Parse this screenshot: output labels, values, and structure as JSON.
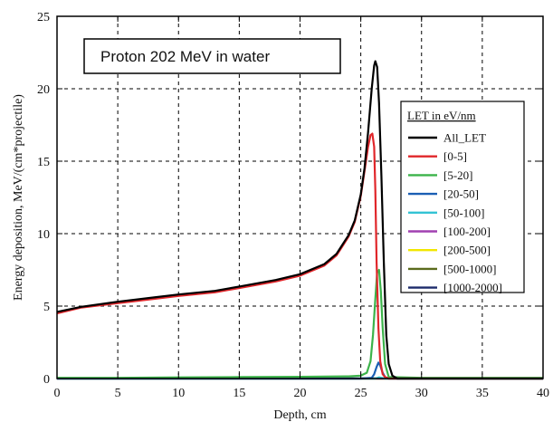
{
  "chart_data": {
    "type": "line",
    "annotation": "Proton 202 MeV in water",
    "xlabel": "Depth, cm",
    "ylabel": "Energy deposition, MeV/(cm*projectile)",
    "xlim": [
      0,
      40
    ],
    "ylim": [
      0,
      25
    ],
    "xticks": [
      0,
      5,
      10,
      15,
      20,
      25,
      30,
      35,
      40
    ],
    "yticks": [
      0,
      5,
      10,
      15,
      20,
      25
    ],
    "grid": true,
    "legend": {
      "title": "LET in eV/nm",
      "placement": "right",
      "entries": [
        "All_LET",
        "[0-5]",
        "[5-20]",
        "[20-50]",
        "[50-100]",
        "[100-200]",
        "[200-500]",
        "[500-1000]",
        "[1000-2000]"
      ]
    },
    "series": [
      {
        "name": "All_LET",
        "color": "#000000",
        "x": [
          0,
          2,
          5,
          8,
          10,
          13,
          15,
          18,
          20,
          22,
          23,
          24,
          24.5,
          25,
          25.3,
          25.6,
          25.9,
          26.1,
          26.2,
          26.35,
          26.5,
          26.7,
          26.9,
          27.1,
          27.3,
          27.6,
          28,
          30,
          35,
          40
        ],
        "y": [
          4.6,
          4.95,
          5.3,
          5.6,
          5.8,
          6.05,
          6.35,
          6.8,
          7.2,
          7.9,
          8.6,
          9.9,
          10.9,
          12.7,
          14.5,
          17.0,
          20.0,
          21.6,
          21.9,
          21.5,
          19.0,
          14.0,
          8.0,
          3.0,
          1.0,
          0.2,
          0,
          0,
          0,
          0
        ]
      },
      {
        "name": "[0-5]",
        "color": "#e0262a",
        "x": [
          0,
          2,
          5,
          8,
          10,
          13,
          15,
          18,
          20,
          22,
          23,
          24,
          24.5,
          25,
          25.3,
          25.6,
          25.8,
          25.95,
          26.1,
          26.2,
          26.3,
          26.45,
          26.6,
          26.8,
          27.0,
          27.3,
          30,
          35,
          40
        ],
        "y": [
          4.5,
          4.9,
          5.2,
          5.5,
          5.7,
          5.95,
          6.25,
          6.7,
          7.1,
          7.8,
          8.5,
          9.8,
          10.8,
          12.6,
          14.3,
          16.0,
          16.8,
          16.9,
          16.0,
          13.0,
          8.0,
          3.5,
          1.2,
          0.3,
          0.1,
          0,
          0,
          0,
          0
        ]
      },
      {
        "name": "[5-20]",
        "color": "#3cb34a",
        "x": [
          0,
          5,
          10,
          15,
          20,
          24,
          25,
          25.5,
          25.8,
          26.0,
          26.2,
          26.35,
          26.5,
          26.65,
          26.8,
          27.0,
          27.3,
          30,
          35,
          40
        ],
        "y": [
          0.05,
          0.05,
          0.08,
          0.1,
          0.12,
          0.15,
          0.2,
          0.4,
          1.2,
          3.0,
          5.5,
          7.3,
          7.5,
          6.0,
          3.5,
          1.0,
          0.1,
          0.05,
          0.05,
          0.05
        ]
      },
      {
        "name": "[20-50]",
        "color": "#1a5fb4",
        "x": [
          0,
          25,
          25.9,
          26.1,
          26.3,
          26.45,
          26.6,
          26.8,
          27.0,
          27.3,
          40
        ],
        "y": [
          0,
          0,
          0.05,
          0.3,
          0.8,
          1.1,
          0.9,
          0.4,
          0.1,
          0,
          0
        ]
      },
      {
        "name": "[50-100]",
        "color": "#33c3d4",
        "x": [
          0,
          26.2,
          26.5,
          26.7,
          27.0,
          40
        ],
        "y": [
          0,
          0,
          0.08,
          0.05,
          0,
          0
        ]
      },
      {
        "name": "[100-200]",
        "color": "#a040b0",
        "x": [
          0,
          40
        ],
        "y": [
          0,
          0
        ]
      },
      {
        "name": "[200-500]",
        "color": "#f2e600",
        "x": [
          0,
          40
        ],
        "y": [
          0,
          0
        ]
      },
      {
        "name": "[500-1000]",
        "color": "#5a6b1c",
        "x": [
          0,
          40
        ],
        "y": [
          0,
          0
        ]
      },
      {
        "name": "[1000-2000]",
        "color": "#1c2a6b",
        "x": [
          0,
          40
        ],
        "y": [
          0,
          0
        ]
      }
    ]
  }
}
